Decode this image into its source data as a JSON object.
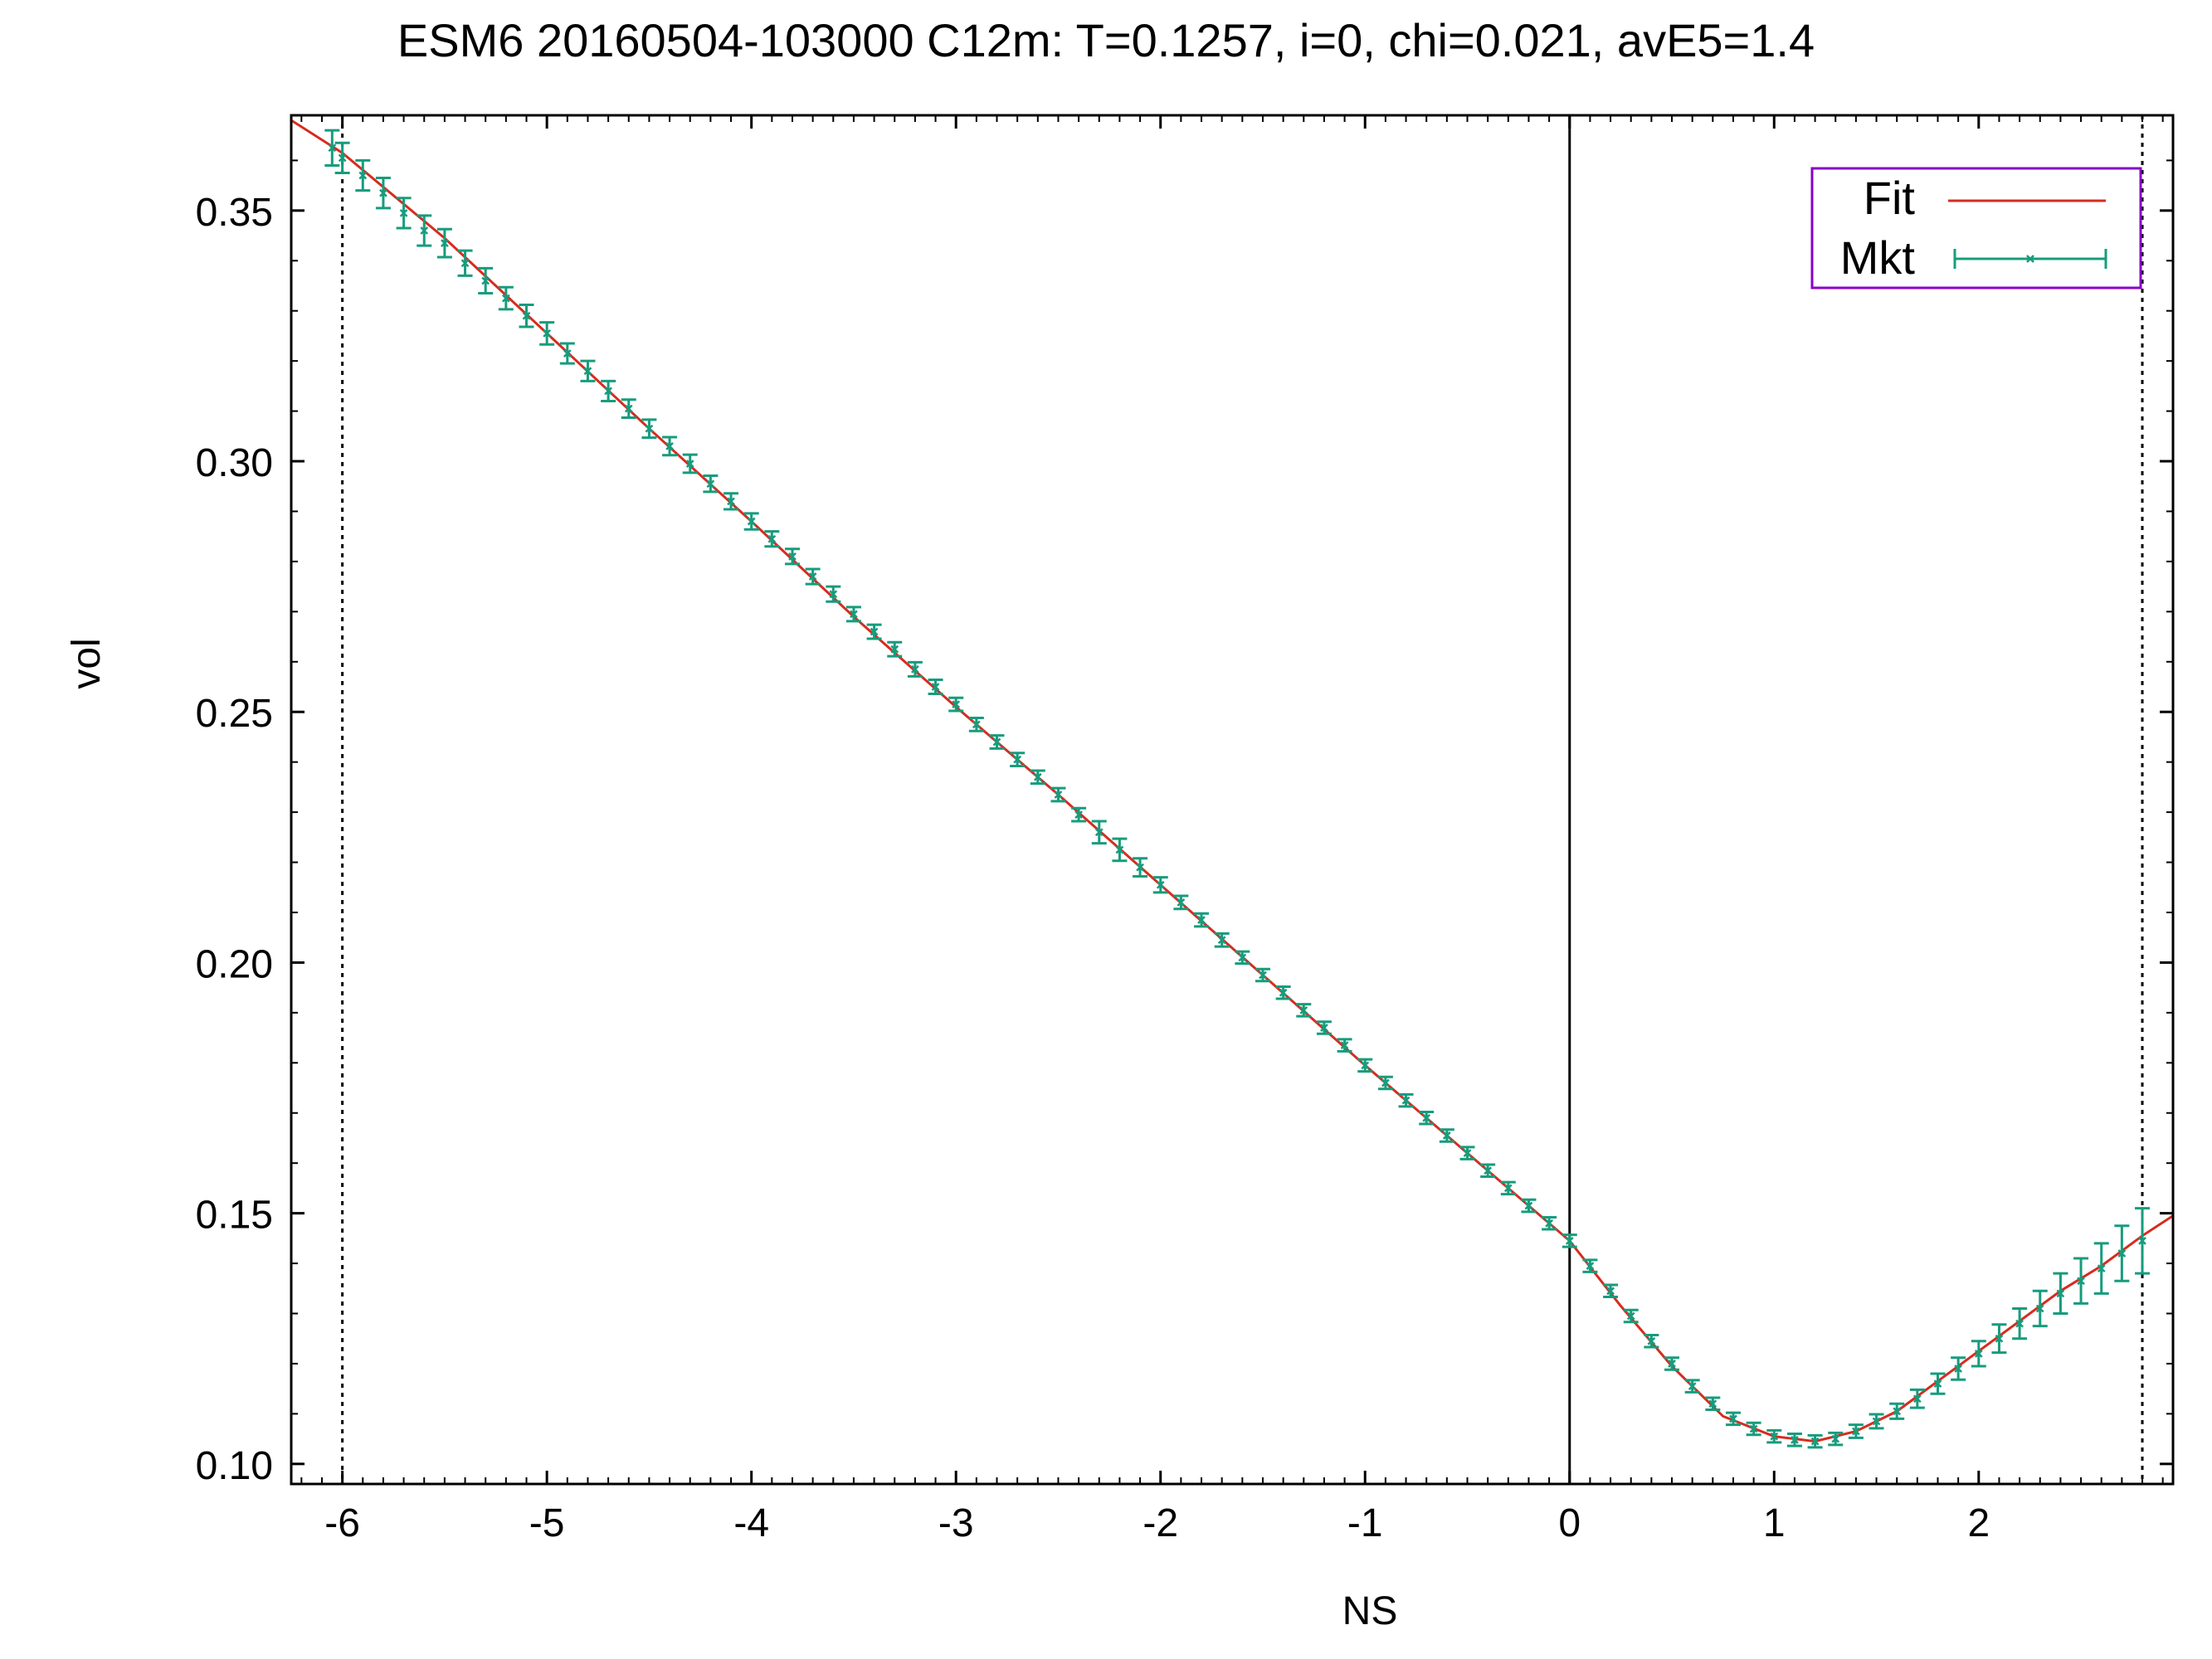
{
  "chart_data": {
    "type": "line",
    "title": "ESM6 20160504-103000  C12m:  T=0.1257, i=0, chi=0.021, avE5=1.4",
    "xlabel": "NS",
    "ylabel": "vol",
    "xlim": [
      -6.25,
      2.95
    ],
    "ylim": [
      0.096,
      0.369
    ],
    "x_ticks": [
      -6,
      -5,
      -4,
      -3,
      -2,
      -1,
      0,
      1,
      2
    ],
    "x_tick_labels": [
      "-6",
      "-5",
      "-4",
      "-3",
      "-2",
      "-1",
      "0",
      "1",
      "2"
    ],
    "y_ticks": [
      0.1,
      0.15,
      0.2,
      0.25,
      0.3,
      0.35
    ],
    "y_tick_labels": [
      "0.10",
      "0.15",
      "0.20",
      "0.25",
      "0.30",
      "0.35"
    ],
    "reference_lines": {
      "x_solid": 0,
      "x_dotted": [
        -6.0,
        2.8
      ]
    },
    "legend": {
      "position": "top-right",
      "entries": [
        "Fit",
        "Mkt"
      ]
    },
    "grid": false,
    "colors": {
      "fit": "#d62c1f",
      "mkt": "#179c7d",
      "legend_border": "#8a00c8",
      "axes": "#000000"
    },
    "series": [
      {
        "name": "Fit",
        "style": "line",
        "x": [
          -6.25,
          -6.0,
          -5.5,
          -5.0,
          -4.5,
          -4.0,
          -3.5,
          -3.0,
          -2.5,
          -2.0,
          -1.5,
          -1.0,
          -0.5,
          0.0,
          0.25,
          0.5,
          0.75,
          1.0,
          1.2,
          1.4,
          1.6,
          1.8,
          2.0,
          2.2,
          2.4,
          2.6,
          2.8,
          2.95
        ],
        "y": [
          0.368,
          0.3615,
          0.3445,
          0.3255,
          0.3065,
          0.288,
          0.269,
          0.251,
          0.2335,
          0.2155,
          0.1975,
          0.1795,
          0.162,
          0.1445,
          0.1315,
          0.1195,
          0.1095,
          0.1055,
          0.1045,
          0.1065,
          0.1105,
          0.1165,
          0.1225,
          0.1285,
          0.1345,
          0.1395,
          0.1455,
          0.1495
        ]
      },
      {
        "name": "Mkt",
        "style": "points-errorbars",
        "x": [
          -6.05,
          -6.0,
          -5.9,
          -5.8,
          -5.7,
          -5.6,
          -5.5,
          -5.4,
          -5.3,
          -5.2,
          -5.1,
          -5.0,
          -4.9,
          -4.8,
          -4.7,
          -4.6,
          -4.5,
          -4.4,
          -4.3,
          -4.2,
          -4.1,
          -4.0,
          -3.9,
          -3.8,
          -3.7,
          -3.6,
          -3.5,
          -3.4,
          -3.3,
          -3.2,
          -3.1,
          -3.0,
          -2.9,
          -2.8,
          -2.7,
          -2.6,
          -2.5,
          -2.4,
          -2.3,
          -2.2,
          -2.1,
          -2.0,
          -1.9,
          -1.8,
          -1.7,
          -1.6,
          -1.5,
          -1.4,
          -1.3,
          -1.2,
          -1.1,
          -1.0,
          -0.9,
          -0.8,
          -0.7,
          -0.6,
          -0.5,
          -0.4,
          -0.3,
          -0.2,
          -0.1,
          0.0,
          0.1,
          0.2,
          0.3,
          0.4,
          0.5,
          0.6,
          0.7,
          0.8,
          0.9,
          1.0,
          1.1,
          1.2,
          1.3,
          1.4,
          1.5,
          1.6,
          1.7,
          1.8,
          1.9,
          2.0,
          2.1,
          2.2,
          2.3,
          2.4,
          2.5,
          2.6,
          2.7,
          2.8
        ],
        "y": [
          0.3625,
          0.3605,
          0.357,
          0.3535,
          0.3495,
          0.346,
          0.3435,
          0.3395,
          0.336,
          0.3325,
          0.329,
          0.3255,
          0.3215,
          0.318,
          0.314,
          0.3105,
          0.3065,
          0.303,
          0.2995,
          0.2955,
          0.292,
          0.288,
          0.2845,
          0.281,
          0.277,
          0.2735,
          0.2695,
          0.266,
          0.2625,
          0.2585,
          0.255,
          0.2515,
          0.2475,
          0.244,
          0.2405,
          0.237,
          0.2335,
          0.2295,
          0.226,
          0.2225,
          0.219,
          0.2155,
          0.212,
          0.2085,
          0.2045,
          0.201,
          0.1975,
          0.194,
          0.1905,
          0.187,
          0.1835,
          0.1795,
          0.176,
          0.1725,
          0.169,
          0.1655,
          0.162,
          0.1585,
          0.155,
          0.1515,
          0.148,
          0.1445,
          0.1395,
          0.1345,
          0.1295,
          0.1245,
          0.12,
          0.1155,
          0.112,
          0.109,
          0.107,
          0.1055,
          0.1048,
          0.1045,
          0.105,
          0.1065,
          0.1085,
          0.1105,
          0.113,
          0.116,
          0.119,
          0.122,
          0.125,
          0.128,
          0.131,
          0.134,
          0.1365,
          0.139,
          0.142,
          0.1445
        ],
        "err": [
          0.0035,
          0.003,
          0.003,
          0.003,
          0.003,
          0.003,
          0.0028,
          0.0025,
          0.0025,
          0.0022,
          0.0022,
          0.0022,
          0.002,
          0.002,
          0.002,
          0.0018,
          0.0018,
          0.0018,
          0.0018,
          0.0016,
          0.0016,
          0.0016,
          0.0015,
          0.0015,
          0.0015,
          0.0015,
          0.0014,
          0.0014,
          0.0014,
          0.0014,
          0.0014,
          0.0013,
          0.0013,
          0.0013,
          0.0013,
          0.0013,
          0.0013,
          0.0013,
          0.0022,
          0.0022,
          0.0018,
          0.0015,
          0.0013,
          0.0013,
          0.0013,
          0.0012,
          0.0012,
          0.0012,
          0.0012,
          0.0012,
          0.0012,
          0.0012,
          0.0012,
          0.0012,
          0.0012,
          0.0012,
          0.0012,
          0.0012,
          0.0012,
          0.0012,
          0.0012,
          0.0012,
          0.0012,
          0.0012,
          0.0012,
          0.0012,
          0.0012,
          0.0012,
          0.0012,
          0.0012,
          0.0012,
          0.0012,
          0.0012,
          0.0012,
          0.0012,
          0.0013,
          0.0014,
          0.0015,
          0.0018,
          0.002,
          0.0022,
          0.0025,
          0.0028,
          0.003,
          0.0035,
          0.004,
          0.0045,
          0.005,
          0.0055,
          0.0065
        ]
      }
    ]
  }
}
